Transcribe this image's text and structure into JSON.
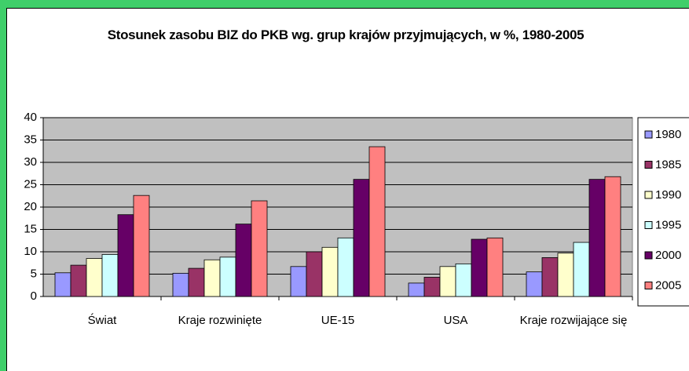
{
  "chart_data": {
    "type": "bar",
    "title": "Stosunek zasobu BIZ do PKB wg. grup krajów przyjmujących, w %, 1980-2005",
    "categories": [
      "Świat",
      "Kraje rozwinięte",
      "UE-15",
      "USA",
      "Kraje rozwijające się"
    ],
    "series": [
      {
        "name": "1980",
        "color": "#9999ff",
        "values": [
          5.3,
          5.2,
          6.7,
          3.0,
          5.5
        ]
      },
      {
        "name": "1985",
        "color": "#993366",
        "values": [
          7.0,
          6.3,
          10.0,
          4.3,
          8.7
        ]
      },
      {
        "name": "1990",
        "color": "#ffffcc",
        "values": [
          8.5,
          8.2,
          11.0,
          6.7,
          9.7
        ]
      },
      {
        "name": "1995",
        "color": "#ccffff",
        "values": [
          9.4,
          8.8,
          13.1,
          7.3,
          12.1
        ]
      },
      {
        "name": "2000",
        "color": "#660066",
        "values": [
          18.3,
          16.2,
          26.2,
          12.8,
          26.2
        ]
      },
      {
        "name": "2005",
        "color": "#ff8080",
        "values": [
          22.6,
          21.4,
          33.5,
          13.1,
          26.8
        ]
      }
    ],
    "ylim": [
      0,
      40
    ],
    "yticks": [
      0,
      5,
      10,
      15,
      20,
      25,
      30,
      35,
      40
    ],
    "grid": true,
    "legend": "right"
  }
}
